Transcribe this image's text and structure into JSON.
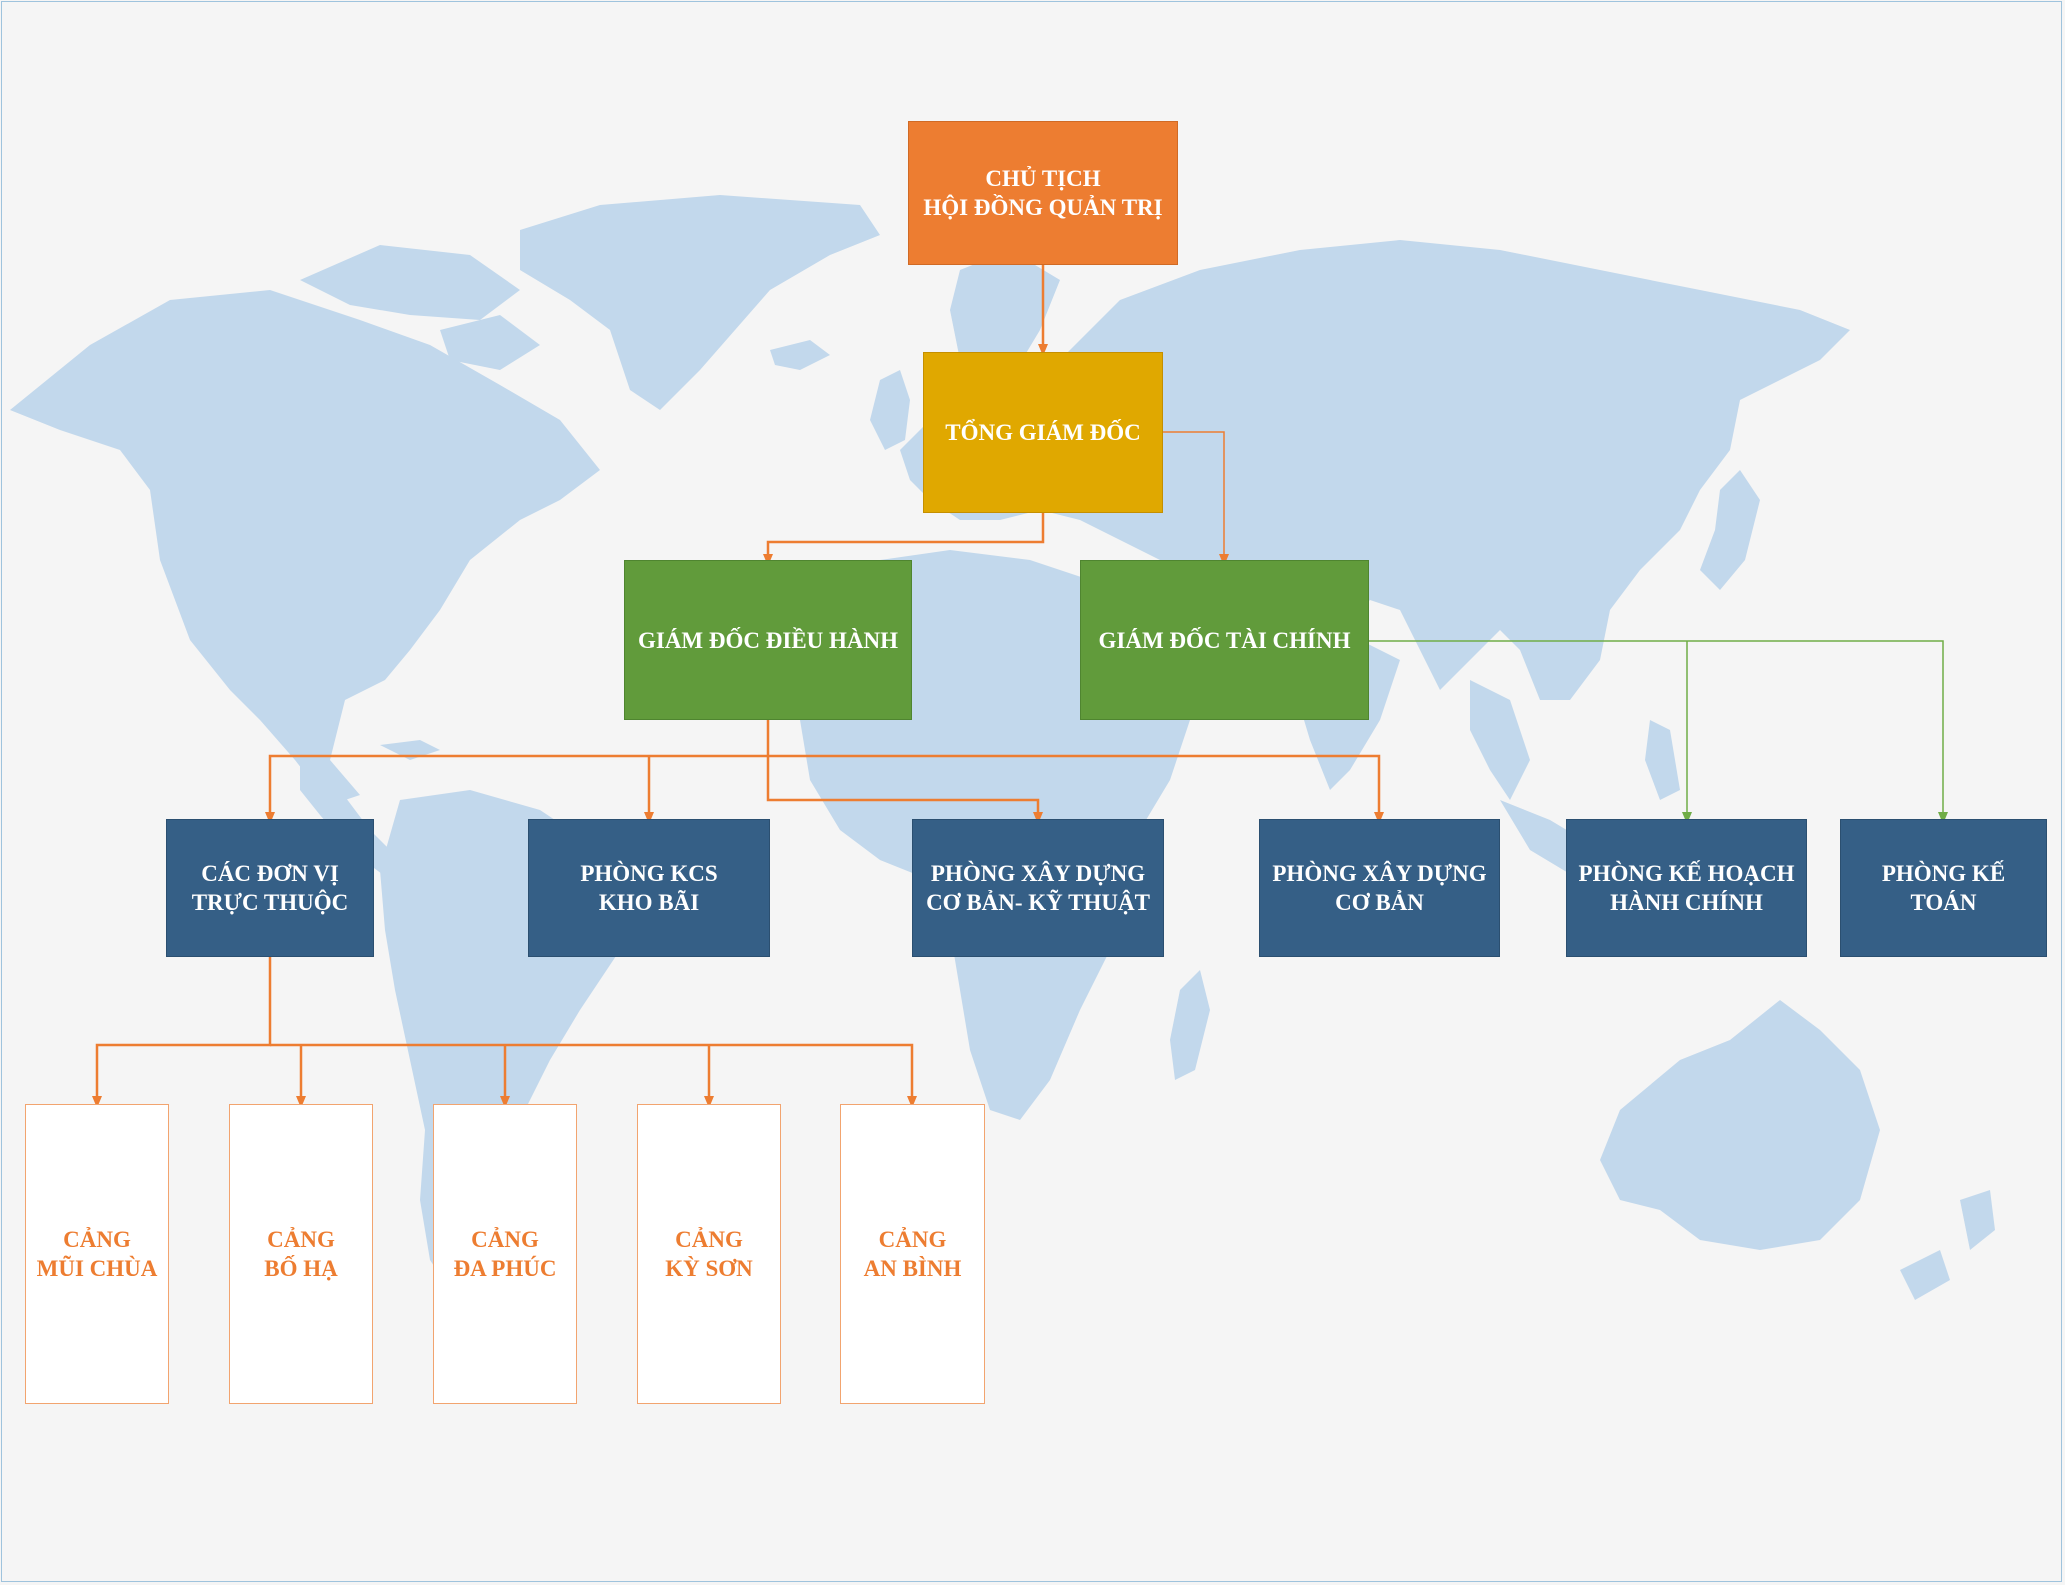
{
  "chairman": {
    "line1": "CHỦ TỊCH",
    "line2": "HỘI ĐỒNG QUẢN TRỊ"
  },
  "ceo": {
    "line1": "TỔNG GIÁM ĐỐC"
  },
  "directors": {
    "executive": {
      "line1": "GIÁM ĐỐC ĐIỀU HÀNH"
    },
    "finance": {
      "line1": "GIÁM ĐỐC TÀI CHÍNH"
    }
  },
  "departments": {
    "subsidiary_units": {
      "line1": "CÁC ĐƠN VỊ",
      "line2": "TRỰC THUỘC"
    },
    "kcs_warehouse": {
      "line1": "PHÒNG KCS",
      "line2": "KHO BÃI"
    },
    "construction_technical": {
      "line1": "PHÒNG XÂY DỰNG",
      "line2": "CƠ BẢN- KỸ THUẬT"
    },
    "basic_construction": {
      "line1": "PHÒNG XÂY DỰNG",
      "line2": "CƠ BẢN"
    },
    "planning_admin": {
      "line1": "PHÒNG KẾ HOẠCH",
      "line2": "HÀNH CHÍNH"
    },
    "accounting": {
      "line1": "PHÒNG KẾ",
      "line2": "TOÁN"
    }
  },
  "ports": [
    {
      "line1": "CẢNG",
      "line2": "MŨI CHÙA"
    },
    {
      "line1": "CẢNG",
      "line2": "BỐ HẠ"
    },
    {
      "line1": "CẢNG",
      "line2": "ĐA PHÚC"
    },
    {
      "line1": "CẢNG",
      "line2": "KỲ SƠN"
    },
    {
      "line1": "CẢNG",
      "line2": "AN BÌNH"
    }
  ],
  "colors": {
    "background": "#f5f5f5",
    "map": "#c2d8ec",
    "chairman": "#ed7d31",
    "ceo": "#e0a800",
    "director": "#619b3b",
    "department": "#355f86",
    "port_text": "#ed7d31",
    "connector_orange": "#ed7d31",
    "connector_green": "#70ad47"
  }
}
